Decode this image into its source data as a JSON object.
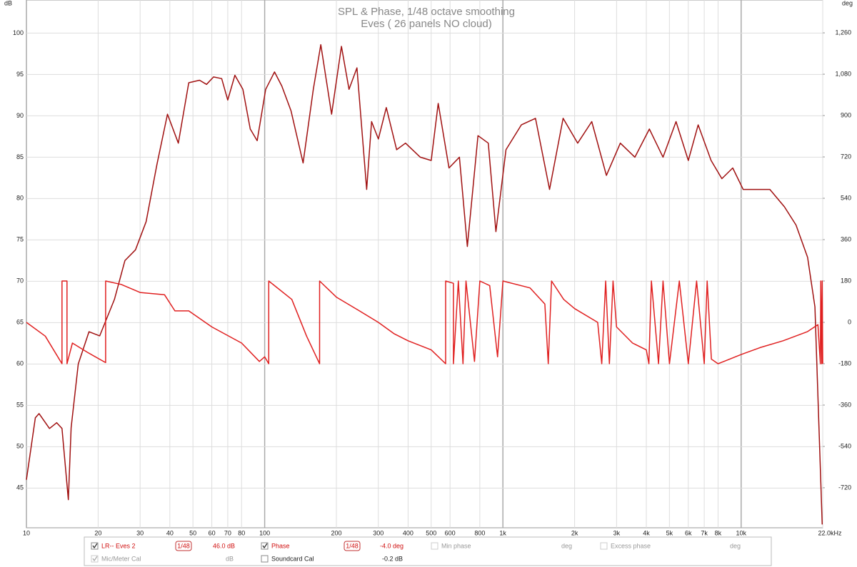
{
  "chart_data": {
    "type": "line",
    "title": "SPL & Phase, 1/48 octave smoothing",
    "subtitle": "Eves ( 26 panels NO cloud)",
    "y_label": "dB",
    "y2_label": "deg",
    "log_x": true,
    "grid": true,
    "xlim": [
      10,
      22000
    ],
    "xticks": [
      10,
      20,
      30,
      40,
      50,
      60,
      70,
      80,
      100,
      200,
      300,
      400,
      500,
      600,
      800,
      {
        "value": 1000,
        "label": "1k"
      },
      {
        "value": 2000,
        "label": "2k"
      },
      {
        "value": 3000,
        "label": "3k"
      },
      {
        "value": 4000,
        "label": "4k"
      },
      {
        "value": 5000,
        "label": "5k"
      },
      {
        "value": 6000,
        "label": "6k"
      },
      {
        "value": 7000,
        "label": "7k"
      },
      {
        "value": 8000,
        "label": "8k"
      },
      {
        "value": 10000,
        "label": "10k"
      },
      {
        "value": 22000,
        "label": "22.0kHz"
      }
    ],
    "ylim": [
      40.2,
      104
    ],
    "yticks": [
      45,
      50,
      55,
      60,
      65,
      70,
      75,
      80,
      85,
      90,
      95,
      100
    ],
    "y2lim": [
      -894,
      1403
    ],
    "y2ticks": [
      -720,
      -540,
      -360,
      -180,
      0,
      180,
      360,
      540,
      720,
      900,
      {
        "value": 1080,
        "label": "1,080"
      },
      {
        "value": 1260,
        "label": "1,260"
      }
    ],
    "series": [
      {
        "name": "LR-- Eves 2",
        "color": "#a01010",
        "x": [
          10,
          10.9,
          11.3,
          12.5,
          13.4,
          14.1,
          15,
          15.4,
          16.5,
          18.3,
          20.3,
          23.4,
          25.9,
          28.7,
          31.8,
          35.3,
          39.1,
          43.4,
          48,
          53.3,
          57,
          61,
          66,
          70,
          75,
          81,
          87,
          93,
          101,
          110,
          118,
          129,
          145,
          160,
          172,
          191,
          210,
          226,
          244,
          268,
          281,
          300,
          324,
          358,
          390,
          450,
          500,
          535,
          594,
          657,
          709,
          786,
          868,
          935,
          1030,
          1195,
          1370,
          1570,
          1790,
          2060,
          2360,
          2720,
          3110,
          3580,
          4120,
          4700,
          5330,
          6000,
          6600,
          7480,
          8300,
          9220,
          10200,
          11800,
          13200,
          15200,
          17000,
          19000,
          20400,
          21900
        ],
        "values": [
          46,
          53.5,
          54,
          52.2,
          52.9,
          52.2,
          43.6,
          52.3,
          60,
          63.9,
          63.4,
          67.8,
          72.5,
          73.8,
          77.2,
          84.1,
          90.2,
          86.7,
          94,
          94.3,
          93.8,
          94.7,
          94.5,
          91.9,
          94.9,
          93.2,
          88.4,
          87,
          93.2,
          95.3,
          93.6,
          90.6,
          84.3,
          93.2,
          98.6,
          90.2,
          98.4,
          93.2,
          95.8,
          81.1,
          89.3,
          87.2,
          91,
          85.9,
          86.7,
          85,
          84.6,
          91.5,
          83.7,
          85,
          74.2,
          87.6,
          86.7,
          76,
          85.9,
          88.9,
          89.7,
          81.1,
          89.7,
          86.7,
          89.3,
          82.8,
          86.7,
          85,
          88.4,
          85,
          89.3,
          84.6,
          88.9,
          84.6,
          82.4,
          83.7,
          81.1,
          81.1,
          81.1,
          79,
          76.8,
          72.9,
          66.9,
          40.6
        ]
      },
      {
        "name": "Phase",
        "color": "#e02020",
        "axis": "y2",
        "x": [
          10,
          12,
          14.1,
          14.1,
          14.8,
          14.8,
          15.6,
          18,
          21.5,
          21.5,
          25,
          30,
          38,
          42,
          48,
          60,
          80,
          95,
          100,
          104,
          104,
          130,
          150,
          170,
          170,
          200,
          250,
          300,
          350,
          400,
          500,
          575,
          575,
          620,
          620,
          650,
          680,
          700,
          760,
          800,
          880,
          950,
          1000,
          1300,
          1500,
          1550,
          1600,
          1800,
          2000,
          2500,
          2600,
          2700,
          2800,
          2900,
          3000,
          3500,
          4000,
          4100,
          4200,
          4500,
          4700,
          5000,
          5500,
          6000,
          6500,
          7000,
          7200,
          7500,
          8000,
          10000,
          12000,
          15000,
          19000,
          21000,
          21500,
          21600,
          21800,
          21900,
          22000
        ],
        "values": [
          0,
          -60,
          -180,
          180,
          180,
          -180,
          -90,
          -130,
          -175,
          180,
          165,
          130,
          120,
          50,
          50,
          -20,
          -90,
          -170,
          -150,
          -180,
          180,
          100,
          -60,
          -180,
          180,
          110,
          50,
          0,
          -50,
          -80,
          -120,
          -180,
          180,
          170,
          -180,
          180,
          -180,
          180,
          -170,
          180,
          160,
          -150,
          180,
          150,
          80,
          -180,
          180,
          100,
          60,
          0,
          -180,
          180,
          -180,
          180,
          -20,
          -90,
          -120,
          -180,
          180,
          -180,
          180,
          -180,
          180,
          -180,
          180,
          -180,
          180,
          -160,
          -180,
          -140,
          -110,
          -80,
          -40,
          -10,
          -180,
          180,
          -180,
          180,
          -180
        ]
      }
    ]
  },
  "legend_panel": {
    "row1": {
      "smoothing1": "1/48",
      "offset1": "46.0 dB",
      "smoothing2": "1/48",
      "offset2": "-4.0 deg",
      "min_phase": "Min phase",
      "min_phase_unit": "deg",
      "excess_phase": "Excess phase",
      "excess_phase_unit": "deg"
    },
    "row2": {
      "mic_cal": "Mic/Meter Cal",
      "mic_cal_unit": "dB",
      "soundcard_cal": "Soundcard Cal",
      "soundcard_offset": "-0.2 dB"
    }
  }
}
